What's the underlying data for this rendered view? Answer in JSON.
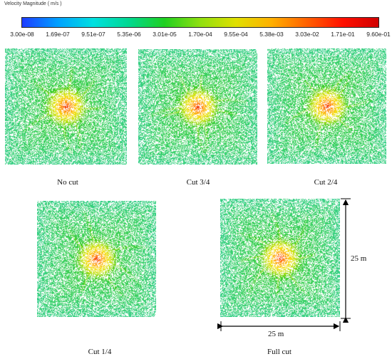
{
  "colorbar": {
    "title": "Velocity Magnitude ( m/s )",
    "ticks": [
      "3.00e-08",
      "1.69e-07",
      "9.51e-07",
      "5.35e-06",
      "3.01e-05",
      "1.70e-04",
      "9.55e-04",
      "5.38e-03",
      "3.03e-02",
      "1.71e-01",
      "9.60e-01"
    ],
    "gradient": [
      "#1e3cff",
      "#00a0ff",
      "#00e0e0",
      "#00d890",
      "#20d020",
      "#90e010",
      "#e0e000",
      "#ffb000",
      "#ff6000",
      "#ff1000",
      "#d00000"
    ]
  },
  "panels": [
    {
      "id": "no-cut",
      "caption": "No cut",
      "arms": 7,
      "seed": 11
    },
    {
      "id": "cut-3-4",
      "caption": "Cut 3/4",
      "arms": 8,
      "seed": 23
    },
    {
      "id": "cut-2-4",
      "caption": "Cut 2/4",
      "arms": 7,
      "seed": 37
    },
    {
      "id": "cut-1-4",
      "caption": "Cut 1/4",
      "arms": 6,
      "seed": 41
    },
    {
      "id": "full-cut",
      "caption": "Full cut",
      "arms": 8,
      "seed": 53
    }
  ],
  "dimensions": {
    "height_label": "25 m",
    "width_label": "25 m"
  }
}
